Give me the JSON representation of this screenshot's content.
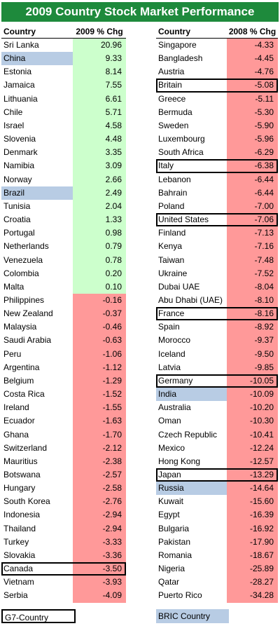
{
  "title": "2009 Country Stock Market Performance",
  "colors": {
    "title_bg": "#1e8a3c",
    "positive": "#ccffcc",
    "negative": "#ff9999",
    "bric": "#b8cce4",
    "g7_border": "#000000"
  },
  "legend": {
    "g7": "G7-Country",
    "bric": "BRIC Country"
  },
  "chart_data": {
    "type": "table",
    "columns": [
      {
        "header_name": "Country",
        "header_value": "2009 % Chg",
        "rows": [
          {
            "country": "Sri Lanka",
            "value": "20.96"
          },
          {
            "country": "China",
            "value": "9.33",
            "bric": true
          },
          {
            "country": "Estonia",
            "value": "8.14"
          },
          {
            "country": "Jamaica",
            "value": "7.55"
          },
          {
            "country": "Lithuania",
            "value": "6.61"
          },
          {
            "country": "Chile",
            "value": "5.71"
          },
          {
            "country": "Israel",
            "value": "4.58"
          },
          {
            "country": "Slovenia",
            "value": "4.48"
          },
          {
            "country": "Denmark",
            "value": "3.35"
          },
          {
            "country": "Namibia",
            "value": "3.09"
          },
          {
            "country": "Norway",
            "value": "2.66"
          },
          {
            "country": "Brazil",
            "value": "2.49",
            "bric": true
          },
          {
            "country": "Tunisia",
            "value": "2.04"
          },
          {
            "country": "Croatia",
            "value": "1.33"
          },
          {
            "country": "Portugal",
            "value": "0.98"
          },
          {
            "country": "Netherlands",
            "value": "0.79"
          },
          {
            "country": "Venezuela",
            "value": "0.78"
          },
          {
            "country": "Colombia",
            "value": "0.20"
          },
          {
            "country": "Malta",
            "value": "0.10"
          },
          {
            "country": "Philippines",
            "value": "-0.16"
          },
          {
            "country": "New Zealand",
            "value": "-0.37"
          },
          {
            "country": "Malaysia",
            "value": "-0.46"
          },
          {
            "country": "Saudi Arabia",
            "value": "-0.63"
          },
          {
            "country": "Peru",
            "value": "-1.06"
          },
          {
            "country": "Argentina",
            "value": "-1.12"
          },
          {
            "country": "Belgium",
            "value": "-1.29"
          },
          {
            "country": "Costa Rica",
            "value": "-1.52"
          },
          {
            "country": "Ireland",
            "value": "-1.55"
          },
          {
            "country": "Ecuador",
            "value": "-1.63"
          },
          {
            "country": "Ghana",
            "value": "-1.70"
          },
          {
            "country": "Switzerland",
            "value": "-2.12"
          },
          {
            "country": "Mauritius",
            "value": "-2.38"
          },
          {
            "country": "Botswana",
            "value": "-2.57"
          },
          {
            "country": "Hungary",
            "value": "-2.58"
          },
          {
            "country": "South Korea",
            "value": "-2.76"
          },
          {
            "country": "Indonesia",
            "value": "-2.94"
          },
          {
            "country": "Thailand",
            "value": "-2.94"
          },
          {
            "country": "Turkey",
            "value": "-3.33"
          },
          {
            "country": "Slovakia",
            "value": "-3.36"
          },
          {
            "country": "Canada",
            "value": "-3.50",
            "g7": true
          },
          {
            "country": "Vietnam",
            "value": "-3.93"
          },
          {
            "country": "Serbia",
            "value": "-4.09"
          }
        ]
      },
      {
        "header_name": "Country",
        "header_value": "2008 % Chg",
        "rows": [
          {
            "country": "Singapore",
            "value": "-4.33"
          },
          {
            "country": "Bangladesh",
            "value": "-4.45"
          },
          {
            "country": "Austria",
            "value": "-4.76"
          },
          {
            "country": "Britain",
            "value": "-5.08",
            "g7": true
          },
          {
            "country": "Greece",
            "value": "-5.11"
          },
          {
            "country": "Bermuda",
            "value": "-5.30"
          },
          {
            "country": "Sweden",
            "value": "-5.90"
          },
          {
            "country": "Luxembourg",
            "value": "-5.96"
          },
          {
            "country": "South Africa",
            "value": "-6.29"
          },
          {
            "country": "Italy",
            "value": "-6.38",
            "g7": true
          },
          {
            "country": "Lebanon",
            "value": "-6.44"
          },
          {
            "country": "Bahrain",
            "value": "-6.44"
          },
          {
            "country": "Poland",
            "value": "-7.00"
          },
          {
            "country": "United States",
            "value": "-7.06",
            "g7": true
          },
          {
            "country": "Finland",
            "value": "-7.13"
          },
          {
            "country": "Kenya",
            "value": "-7.16"
          },
          {
            "country": "Taiwan",
            "value": "-7.48"
          },
          {
            "country": "Ukraine",
            "value": "-7.52"
          },
          {
            "country": "Dubai UAE",
            "value": "-8.04"
          },
          {
            "country": "Abu Dhabi (UAE)",
            "value": "-8.10"
          },
          {
            "country": "France",
            "value": "-8.16",
            "g7": true
          },
          {
            "country": "Spain",
            "value": "-8.92"
          },
          {
            "country": "Morocco",
            "value": "-9.37"
          },
          {
            "country": "Iceland",
            "value": "-9.50"
          },
          {
            "country": "Latvia",
            "value": "-9.85"
          },
          {
            "country": "Germany",
            "value": "-10.05",
            "g7": true
          },
          {
            "country": "India",
            "value": "-10.09",
            "bric": true
          },
          {
            "country": "Australia",
            "value": "-10.20"
          },
          {
            "country": "Oman",
            "value": "-10.30"
          },
          {
            "country": "Czech Republic",
            "value": "-10.41"
          },
          {
            "country": "Mexico",
            "value": "-12.24"
          },
          {
            "country": "Hong Kong",
            "value": "-12.57"
          },
          {
            "country": "Japan",
            "value": "-13.29",
            "g7": true
          },
          {
            "country": "Russia",
            "value": "-14.64",
            "bric": true
          },
          {
            "country": "Kuwait",
            "value": "-15.60"
          },
          {
            "country": "Egypt",
            "value": "-16.39"
          },
          {
            "country": "Bulgaria",
            "value": "-16.92"
          },
          {
            "country": "Pakistan",
            "value": "-17.90"
          },
          {
            "country": "Romania",
            "value": "-18.67"
          },
          {
            "country": "Nigeria",
            "value": "-25.89"
          },
          {
            "country": "Qatar",
            "value": "-28.27"
          },
          {
            "country": "Puerto Rico",
            "value": "-34.28"
          }
        ]
      }
    ]
  }
}
